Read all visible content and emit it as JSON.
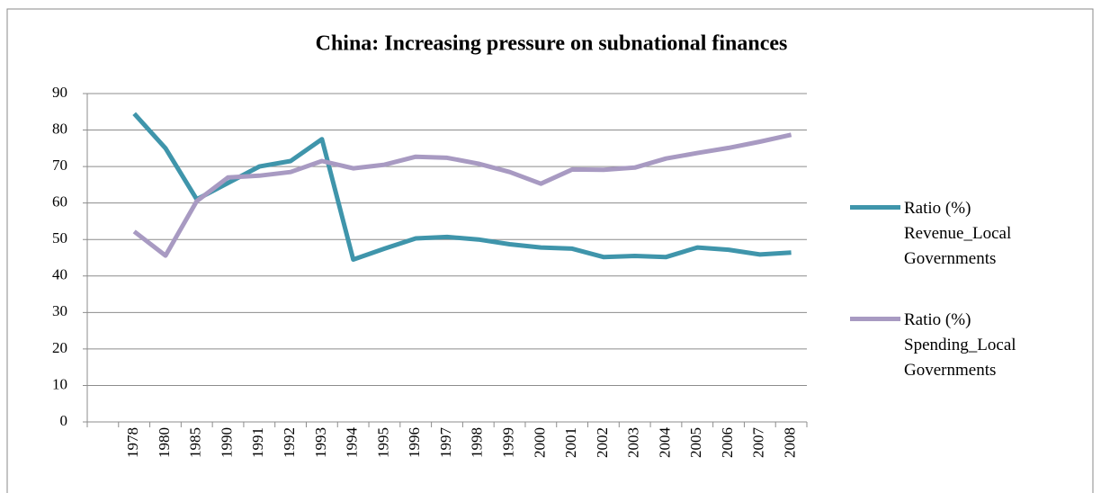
{
  "chart_data": {
    "type": "line",
    "title": "China: Increasing pressure on subnational finances",
    "categories": [
      null,
      "1978",
      "1980",
      "1985",
      "1990",
      "1991",
      "1992",
      "1993",
      "1994",
      "1995",
      "1996",
      "1997",
      "1998",
      "1999",
      "2000",
      "2001",
      "2002",
      "2003",
      "2004",
      "2005",
      "2006",
      "2007",
      "2008"
    ],
    "series": [
      {
        "name": "Ratio (%) Revenue_Local Governments",
        "color": "#3f95ab",
        "values": [
          null,
          84.5,
          75,
          61,
          65.5,
          70,
          71.5,
          77.5,
          44.5,
          47.5,
          50.3,
          50.7,
          50,
          48.7,
          47.8,
          47.5,
          45.2,
          45.5,
          45.2,
          47.8,
          47.2,
          45.9,
          46.4
        ]
      },
      {
        "name": "Ratio (%) Spending_Local Governments",
        "color": "#a89ac2",
        "values": [
          null,
          52.2,
          45.6,
          60.5,
          67,
          67.5,
          68.5,
          71.5,
          69.5,
          70.5,
          72.7,
          72.4,
          70.8,
          68.5,
          65.3,
          69.2,
          69.1,
          69.7,
          72.2,
          73.7,
          75.1,
          76.8,
          78.7
        ]
      }
    ],
    "ylim": [
      0,
      90
    ],
    "yticks": [
      0,
      10,
      20,
      30,
      40,
      50,
      60,
      70,
      80,
      90
    ],
    "grid": true,
    "legend": "right"
  }
}
